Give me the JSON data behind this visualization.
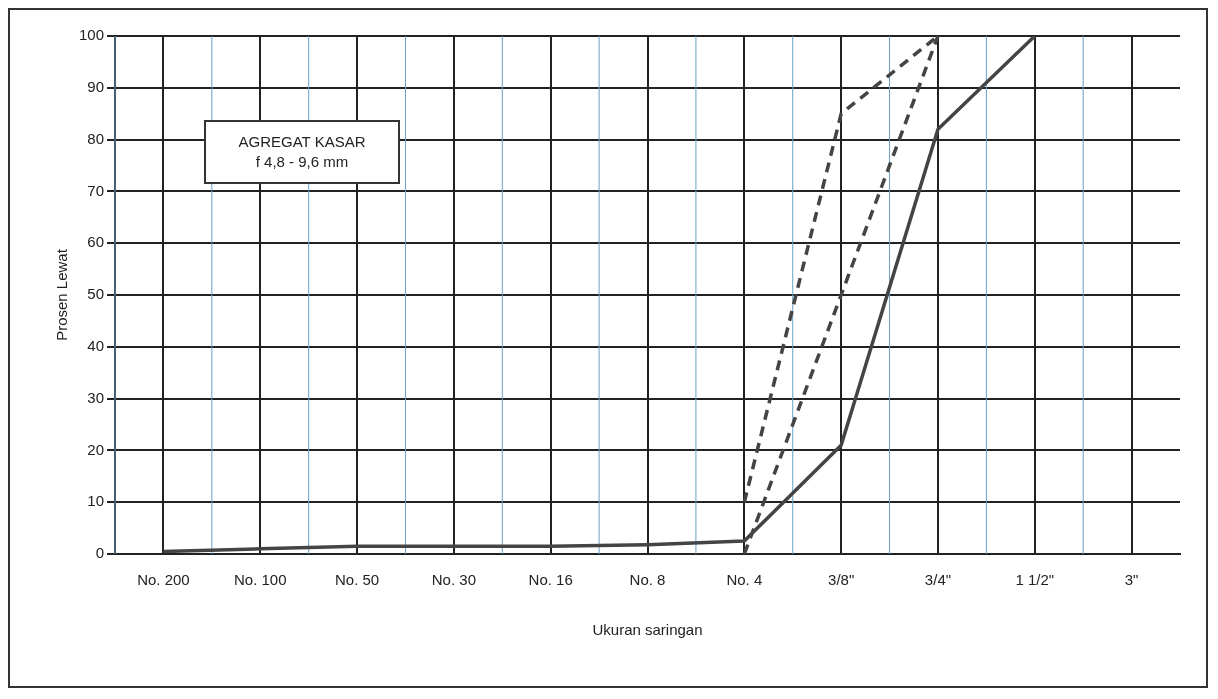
{
  "chart_data": {
    "type": "line",
    "xlabel": "Ukuran saringan",
    "ylabel": "Prosen Lewat",
    "annotations": [
      "AGREGAT KASAR",
      "f 4,8 - 9,6 mm"
    ],
    "categories": [
      "No. 200",
      "No. 100",
      "No. 50",
      "No. 30",
      "No. 16",
      "No. 8",
      "No. 4",
      "3/8\"",
      "3/4\"",
      "1 1/2\"",
      "3\""
    ],
    "series": [
      {
        "color": "#444444",
        "line_style": "solid",
        "values": [
          0.5,
          1,
          1.5,
          1.5,
          1.5,
          1.8,
          2.5,
          21,
          82,
          100,
          null
        ]
      },
      {
        "color": "#444444",
        "line_style": "dashed",
        "values": [
          null,
          null,
          null,
          null,
          null,
          null,
          10,
          85,
          100,
          null,
          null
        ]
      },
      {
        "color": "#444444",
        "line_style": "dashed",
        "values": [
          null,
          null,
          null,
          null,
          null,
          null,
          0,
          50,
          100,
          null,
          null
        ]
      }
    ],
    "ylim": [
      0,
      100
    ],
    "yticks": [
      0,
      10,
      20,
      30,
      40,
      50,
      60,
      70,
      80,
      90,
      100
    ],
    "grid": true,
    "marker": "none",
    "legend": false
  }
}
